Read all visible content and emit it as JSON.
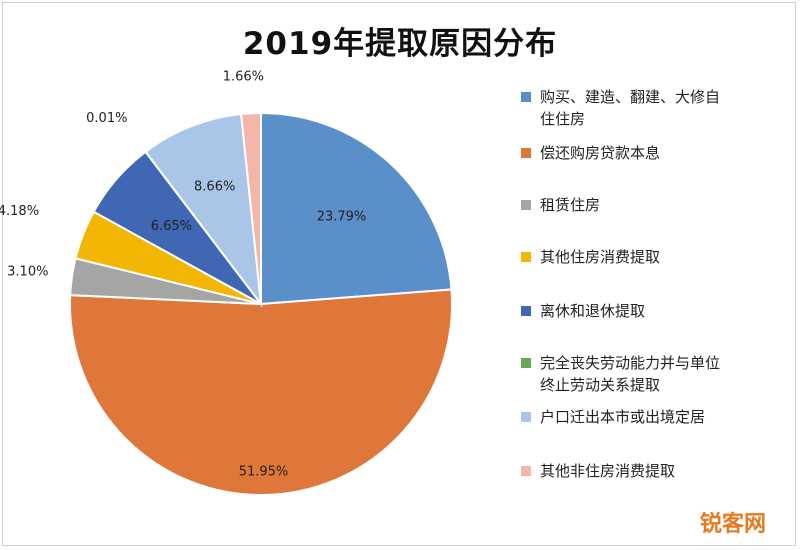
{
  "chart_data": {
    "type": "pie",
    "title": "2019年提取原因分布",
    "legend_position": "right",
    "slices": [
      {
        "label": "购买、建造、翻建、大修自住住房",
        "value": 23.79,
        "display": "23.79%",
        "color": "#5b8fc9"
      },
      {
        "label": "偿还购房贷款本息",
        "value": 51.95,
        "display": "51.95%",
        "color": "#e0773a"
      },
      {
        "label": "租赁住房",
        "value": 3.1,
        "display": "3.10%",
        "color": "#a5a5a5"
      },
      {
        "label": "其他住房消费提取",
        "value": 4.18,
        "display": "4.18%",
        "color": "#f2b705"
      },
      {
        "label": "离休和退休提取",
        "value": 6.65,
        "display": "6.65%",
        "color": "#3f67b4"
      },
      {
        "label": "完全丧失劳动能力并与单位终止劳动关系提取",
        "value": 0.01,
        "display": "0.01%",
        "color": "#6aa84f"
      },
      {
        "label": "户口迁出本市或出境定居",
        "value": 8.66,
        "display": "8.66%",
        "color": "#a9c6e8"
      },
      {
        "label": "其他非住房消费提取",
        "value": 1.66,
        "display": "1.66%",
        "color": "#f4b6a8"
      }
    ]
  },
  "legend_lines": [
    [
      "购买、建造、翻建、大修自",
      "住住房"
    ],
    [
      "偿还购房贷款本息"
    ],
    [
      "租赁住房"
    ],
    [
      "其他住房消费提取"
    ],
    [
      "离休和退休提取"
    ],
    [
      "完全丧失劳动能力并与单位",
      "终止劳动关系提取"
    ],
    [
      "户口迁出本市或出境定居"
    ],
    [
      "其他非住房消费提取"
    ]
  ],
  "watermark": "锐客网"
}
